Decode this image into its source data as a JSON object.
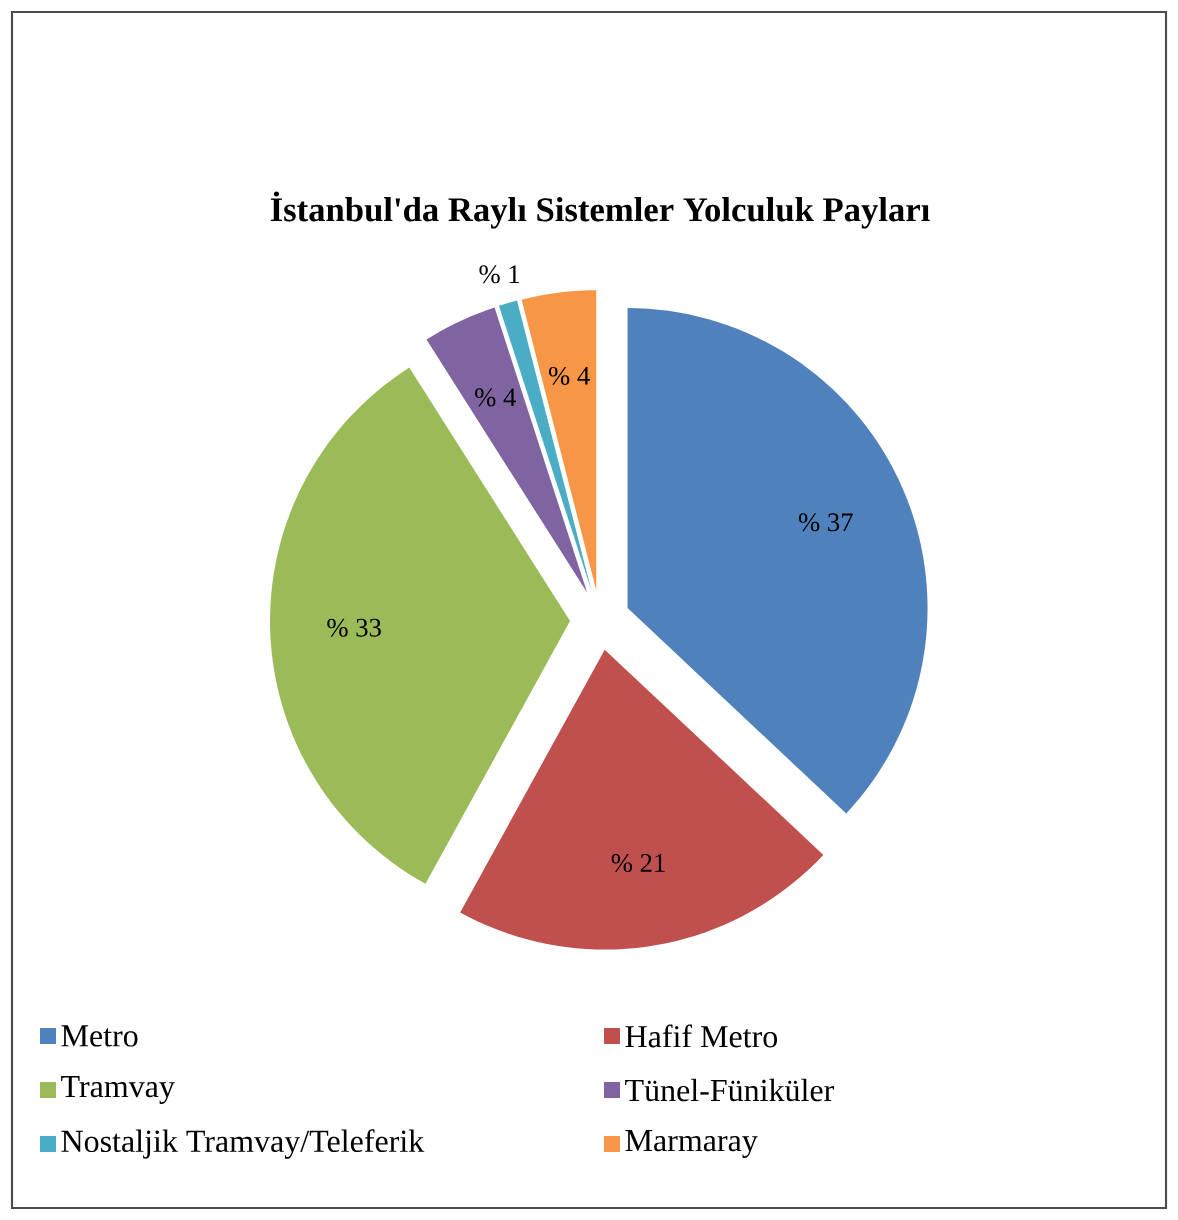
{
  "chart_data": {
    "type": "pie",
    "title": "İstanbul'da Raylı Sistemler Yolculuk Payları",
    "categories": [
      "Metro",
      "Hafif Metro",
      "Tramvay",
      "Tünel-Füniküler",
      "Nostaljik Tramvay/Teleferik",
      "Marmaray"
    ],
    "values": [
      37,
      21,
      33,
      4,
      1,
      4
    ],
    "value_labels": [
      "% 37",
      "% 21",
      "% 33",
      "% 4",
      "% 1",
      "% 4"
    ],
    "colors": [
      "#4f81bd",
      "#c0504d",
      "#9bbb59",
      "#8064a2",
      "#4bacc6",
      "#f79646"
    ],
    "legend": "bottom"
  }
}
